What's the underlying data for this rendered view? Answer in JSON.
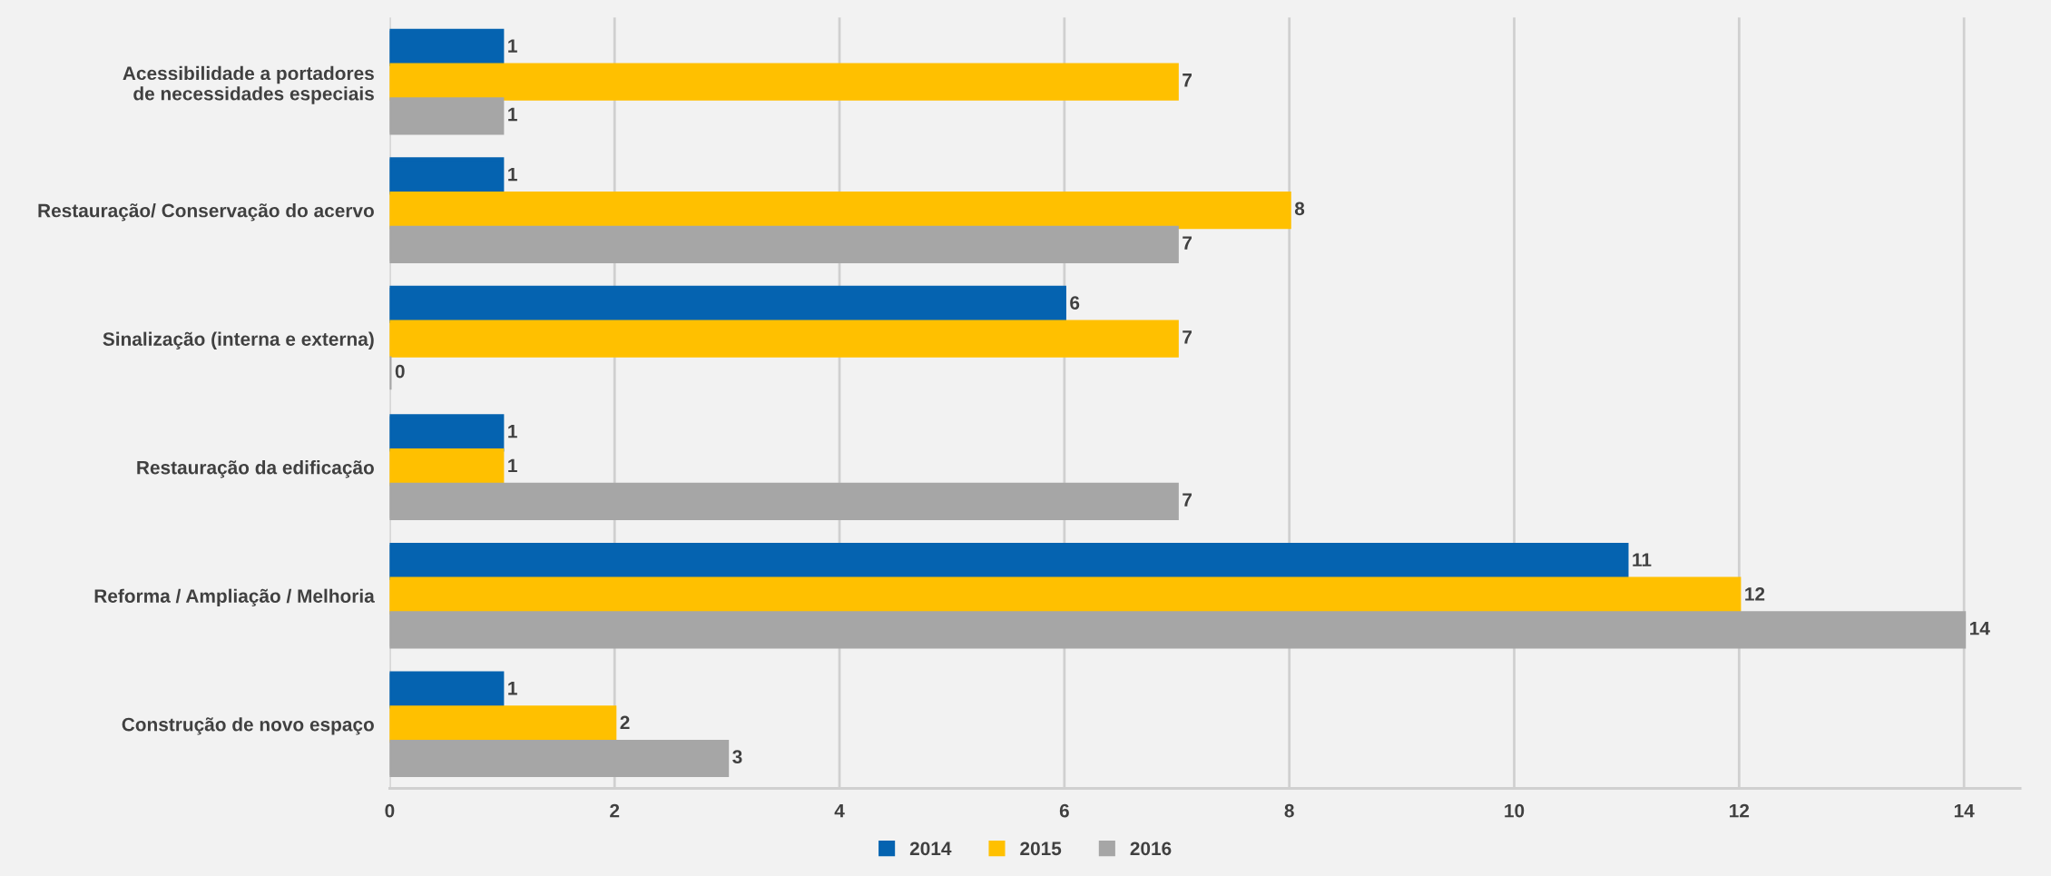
{
  "chart_data": {
    "type": "bar",
    "orientation": "horizontal",
    "categories": [
      "Acessibilidade a portadores\nde necessidades especiais",
      "Restauração/ Conservação do acervo",
      "Sinalização (interna e externa)",
      "Restauração da edificação",
      "Reforma / Ampliação / Melhoria",
      "Construção de novo espaço"
    ],
    "series": [
      {
        "name": "2014",
        "color": "#0563b0",
        "values": [
          1,
          1,
          6,
          1,
          11,
          1
        ]
      },
      {
        "name": "2015",
        "color": "#ffc000",
        "values": [
          7,
          8,
          7,
          1,
          12,
          2
        ]
      },
      {
        "name": "2016",
        "color": "#a6a6a6",
        "values": [
          1,
          7,
          0,
          7,
          14,
          3
        ]
      }
    ],
    "xlim": [
      0,
      14.5
    ],
    "xticks": [
      0,
      2,
      4,
      6,
      8,
      10,
      12,
      14
    ],
    "grid": "x",
    "legend": "bottom",
    "data_labels": true
  }
}
